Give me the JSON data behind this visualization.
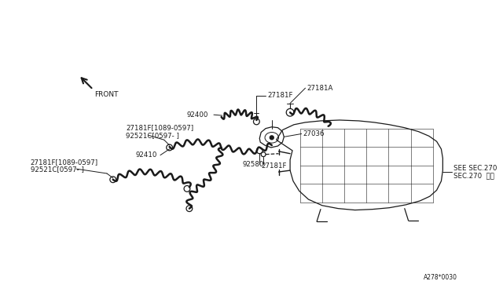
{
  "bg_color": "#ffffff",
  "line_color": "#1a1a1a",
  "text_color": "#1a1a1a",
  "diagram_code": "A278*0030",
  "front_text": "FRONT",
  "label_27181A": "27181A",
  "label_27181F": "27181F",
  "label_27036": "27036",
  "label_92400": "92400",
  "label_92410": "92410",
  "label_92580": "92580",
  "label_27181F_mid": "27181F",
  "label_block1_l1": "27181F[1089-0597]",
  "label_block1_l2": "92521C[0597- ]",
  "label_block2_l1": "27181F[1089-0597]",
  "label_block2_l2": "92521C[0597- ]",
  "label_see_sec": "SEE SEC.270",
  "label_sec_270": "SEC.270  参照"
}
